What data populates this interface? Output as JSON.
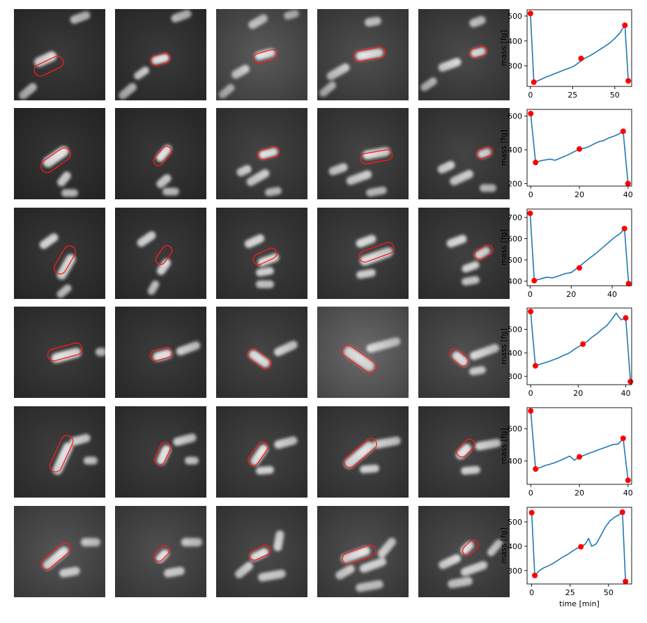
{
  "colors": {
    "line": "#1f77b4",
    "marker": "#ff0000",
    "outline": "#ff1a1a"
  },
  "chart_data": [
    {
      "type": "line",
      "xlabel": "",
      "ylabel": "mass [fg]",
      "xlim": [
        -2,
        60
      ],
      "ylim": [
        218,
        525
      ],
      "xticks": [
        0,
        25,
        50
      ],
      "yticks": [
        300,
        400,
        500
      ],
      "x": [
        0,
        2,
        5,
        8,
        11,
        14,
        17,
        20,
        23,
        26,
        29,
        32,
        35,
        38,
        41,
        44,
        47,
        50,
        53,
        56,
        58
      ],
      "y": [
        510,
        235,
        242,
        252,
        260,
        268,
        276,
        284,
        291,
        300,
        315,
        330,
        340,
        352,
        365,
        378,
        392,
        410,
        432,
        463,
        240
      ],
      "markers": {
        "x": [
          0,
          2,
          30,
          56,
          58
        ],
        "y": [
          510,
          235,
          330,
          463,
          240
        ]
      }
    },
    {
      "type": "line",
      "xlabel": "",
      "ylabel": "mass [fg]",
      "xlim": [
        -1.5,
        41.5
      ],
      "ylim": [
        185,
        640
      ],
      "xticks": [
        0,
        20,
        40
      ],
      "yticks": [
        200,
        400,
        600
      ],
      "x": [
        0,
        2,
        4,
        6,
        8,
        10,
        12,
        14,
        16,
        18,
        20,
        22,
        24,
        26,
        28,
        30,
        32,
        34,
        36,
        38,
        40
      ],
      "y": [
        615,
        325,
        335,
        340,
        345,
        338,
        350,
        362,
        375,
        390,
        405,
        410,
        420,
        435,
        448,
        455,
        470,
        480,
        492,
        510,
        200
      ],
      "markers": {
        "x": [
          0,
          2,
          20,
          38,
          40
        ],
        "y": [
          615,
          325,
          405,
          510,
          200
        ]
      }
    },
    {
      "type": "line",
      "xlabel": "",
      "ylabel": "mass [fg]",
      "xlim": [
        -1.5,
        49.5
      ],
      "ylim": [
        378,
        740
      ],
      "xticks": [
        0,
        20,
        40
      ],
      "yticks": [
        400,
        500,
        600,
        700
      ],
      "x": [
        0,
        2,
        5,
        8,
        11,
        14,
        17,
        20,
        23,
        26,
        29,
        32,
        35,
        38,
        41,
        44,
        46,
        48
      ],
      "y": [
        720,
        402,
        410,
        418,
        415,
        425,
        435,
        440,
        462,
        485,
        508,
        530,
        555,
        580,
        605,
        625,
        648,
        388
      ],
      "markers": {
        "x": [
          0,
          2,
          24,
          46,
          48
        ],
        "y": [
          720,
          402,
          462,
          648,
          388
        ]
      }
    },
    {
      "type": "line",
      "xlabel": "",
      "ylabel": "mass [fg]",
      "xlim": [
        -1.5,
        42.5
      ],
      "ylim": [
        265,
        590
      ],
      "xticks": [
        0,
        20,
        40
      ],
      "yticks": [
        300,
        400,
        500
      ],
      "x": [
        0,
        2,
        4,
        6,
        8,
        10,
        12,
        14,
        16,
        18,
        20,
        22,
        24,
        26,
        28,
        30,
        32,
        34,
        36,
        38,
        40,
        42
      ],
      "y": [
        575,
        345,
        352,
        358,
        365,
        372,
        380,
        390,
        398,
        412,
        425,
        437,
        450,
        468,
        482,
        500,
        515,
        540,
        568,
        540,
        548,
        278
      ],
      "markers": {
        "x": [
          0,
          2,
          22,
          40,
          42
        ],
        "y": [
          575,
          345,
          437,
          548,
          278
        ]
      }
    },
    {
      "type": "line",
      "xlabel": "",
      "ylabel": "mass [fg]",
      "xlim": [
        -1.5,
        41.5
      ],
      "ylim": [
        255,
        730
      ],
      "xticks": [
        0,
        20,
        40
      ],
      "yticks": [
        400,
        600
      ],
      "x": [
        0,
        2,
        4,
        6,
        8,
        10,
        12,
        14,
        16,
        18,
        20,
        22,
        24,
        26,
        28,
        30,
        32,
        34,
        36,
        38,
        40
      ],
      "y": [
        710,
        350,
        360,
        372,
        380,
        390,
        402,
        415,
        430,
        405,
        425,
        435,
        448,
        458,
        470,
        480,
        492,
        502,
        505,
        540,
        280
      ],
      "markers": {
        "x": [
          0,
          2,
          20,
          38,
          40
        ],
        "y": [
          710,
          350,
          425,
          540,
          280
        ]
      }
    },
    {
      "type": "line",
      "xlabel": "time [min]",
      "ylabel": "mass [fg]",
      "xlim": [
        -3,
        65
      ],
      "ylim": [
        245,
        560
      ],
      "xticks": [
        0,
        25,
        50
      ],
      "yticks": [
        300,
        400,
        500
      ],
      "x": [
        0,
        2,
        5,
        8,
        11,
        14,
        17,
        20,
        23,
        26,
        29,
        32,
        35,
        37,
        39,
        42,
        45,
        48,
        51,
        54,
        57,
        59,
        61
      ],
      "y": [
        538,
        280,
        300,
        312,
        320,
        330,
        342,
        355,
        365,
        378,
        390,
        398,
        410,
        432,
        400,
        410,
        445,
        480,
        505,
        520,
        530,
        540,
        255
      ],
      "markers": {
        "x": [
          0,
          2,
          32,
          59,
          61
        ],
        "y": [
          538,
          280,
          398,
          540,
          255
        ]
      }
    }
  ]
}
